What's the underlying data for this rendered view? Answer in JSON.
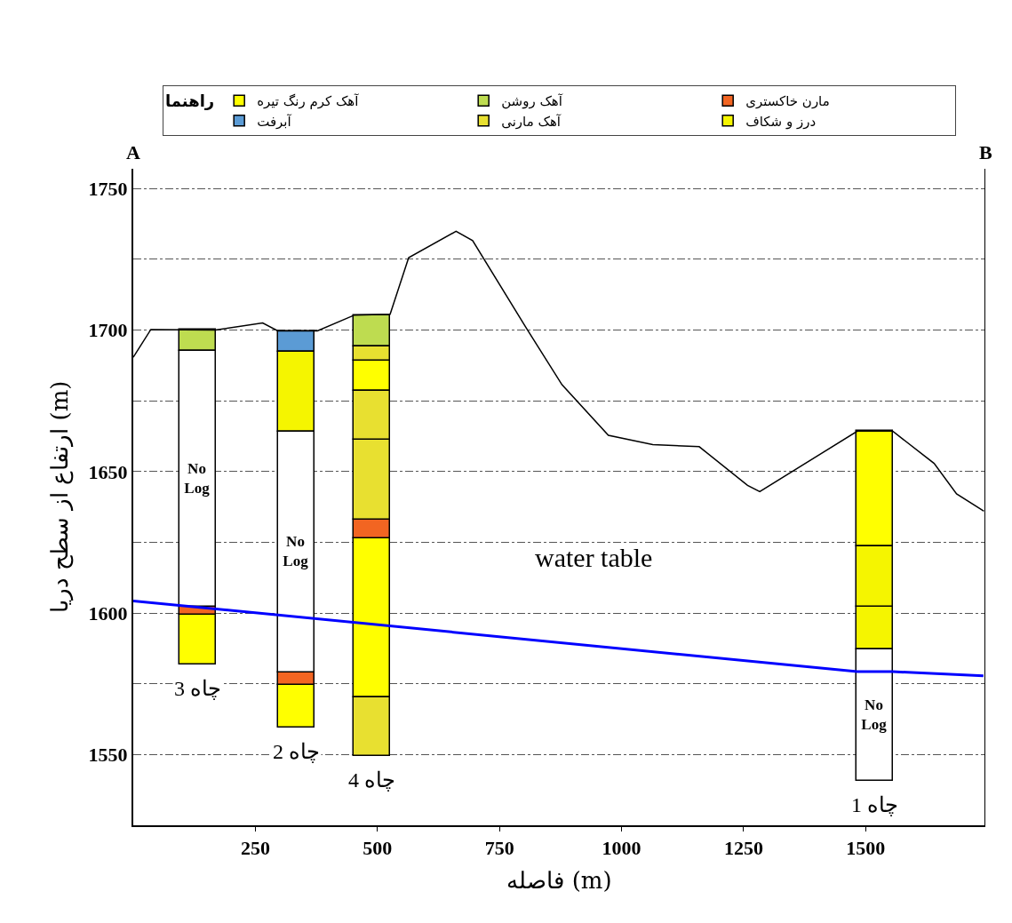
{
  "chart_data": {
    "type": "bar",
    "xlabel": "فاصله (m)",
    "ylabel": "ارتفاع از سطح دریا (m)",
    "legend_title": "راهنما",
    "xlim": [
      0,
      1745
    ],
    "xticks": [
      250,
      500,
      750,
      1000,
      1250,
      1500
    ],
    "ylim": [
      1525,
      1757
    ],
    "yticks": [
      1550,
      {
        "value": 1575,
        "label": null
      },
      1600,
      {
        "value": 1625,
        "label": null
      },
      1650,
      {
        "value": 1675,
        "label": null
      },
      1700,
      {
        "value": 1725,
        "label": null
      },
      1750
    ],
    "grid": "y",
    "legend": "top",
    "series": [
      {
        "type": "line",
        "color": "#000000",
        "x": [
          0,
          36,
          168,
          265,
          296,
          377,
          453,
          526,
          564,
          661,
          695,
          805,
          878,
          973,
          1064,
          1159,
          1258,
          1283,
          1483,
          1555,
          1640,
          1686,
          1742
        ],
        "values": [
          1690.4,
          1700.2,
          1700,
          1702.5,
          1699.7,
          1699.7,
          1705.3,
          1705.6,
          1725.6,
          1734.9,
          1731.6,
          1700.7,
          1680.7,
          1662.8,
          1659.5,
          1658.8,
          1645.1,
          1642.9,
          1664.3,
          1664.3,
          1652.9,
          1642.1,
          1636
        ]
      },
      {
        "type": "line",
        "color": "#0000ff",
        "x": [
          0,
          1483,
          1555,
          1741
        ],
        "values": [
          1604.3,
          1579.3,
          1579.3,
          1577.8
        ]
      },
      {
        "name": "آهک کرم رنگ تیره",
        "color": "#ffff00",
        "x": [
          132,
          334,
          489,
          1519
        ],
        "base": [
          1581.8,
          1559.4,
          1570.3,
          1623.7
        ],
        "values": [
          17.5,
          15.3,
          56.1,
          40.6
        ]
      },
      {
        "color": "#ffff00",
        "x": [
          489
        ],
        "base": [
          1678.5
        ],
        "values": [
          10.8
        ]
      },
      {
        "name": "آهک روشن",
        "color": "#bedc50",
        "x": [
          132
        ],
        "base": [
          1692.8
        ],
        "values": [
          7.3
        ]
      },
      {
        "color": "#bedc50",
        "x": [
          489
        ],
        "base": [
          1694.3
        ],
        "values": [
          11
        ]
      },
      {
        "name": "مارن خاکستری",
        "color": "#f26522",
        "x": [
          132,
          334,
          489
        ],
        "base": [
          1599.3,
          1574.7,
          1626.4
        ],
        "values": [
          3,
          4.4,
          6.6
        ]
      },
      {
        "name": "آبرفت",
        "color": "#5b9bd5",
        "x": [
          334
        ],
        "base": [
          1692.4
        ],
        "values": [
          7.3
        ]
      },
      {
        "name": "آهک مارنی",
        "color": "#e8e030",
        "x": [
          489
        ],
        "base": [
          1549.6
        ],
        "values": [
          20.7
        ]
      },
      {
        "color": "#e8e030",
        "x": [
          489
        ],
        "base": [
          1633
        ],
        "values": [
          28.4
        ]
      },
      {
        "color": "#e8e030",
        "x": [
          489
        ],
        "base": [
          1661.4
        ],
        "values": [
          17.1
        ]
      },
      {
        "color": "#e8e030",
        "x": [
          489
        ],
        "base": [
          1689.3
        ],
        "values": [
          5
        ]
      },
      {
        "name": "درز و شکاف",
        "color": "#f5f500",
        "x": [
          334,
          1519
        ],
        "base": [
          1664.2,
          1587.1
        ],
        "values": [
          28.2,
          15.2
        ]
      },
      {
        "color": "#f5f500",
        "x": [
          1519
        ],
        "base": [
          1602.3
        ],
        "values": [
          21.4
        ]
      },
      {
        "name": "No Log",
        "color": "#ffffff",
        "x": [
          132,
          334,
          1519
        ],
        "base": [
          1602.3,
          1579.1,
          1540.7
        ],
        "values": [
          90.5,
          85.1,
          46.4
        ]
      }
    ],
    "annotations": [
      {
        "text": "چاه 3",
        "x": 132,
        "y": 1581.8
      },
      {
        "text": "چاه 2",
        "x": 334,
        "y": 1559.4
      },
      {
        "text": "چاه 4",
        "x": 489,
        "y": 1549.6
      },
      {
        "text": "چاه 1",
        "x": 1519,
        "y": 1540.7
      },
      "water table",
      "A",
      "B"
    ]
  }
}
